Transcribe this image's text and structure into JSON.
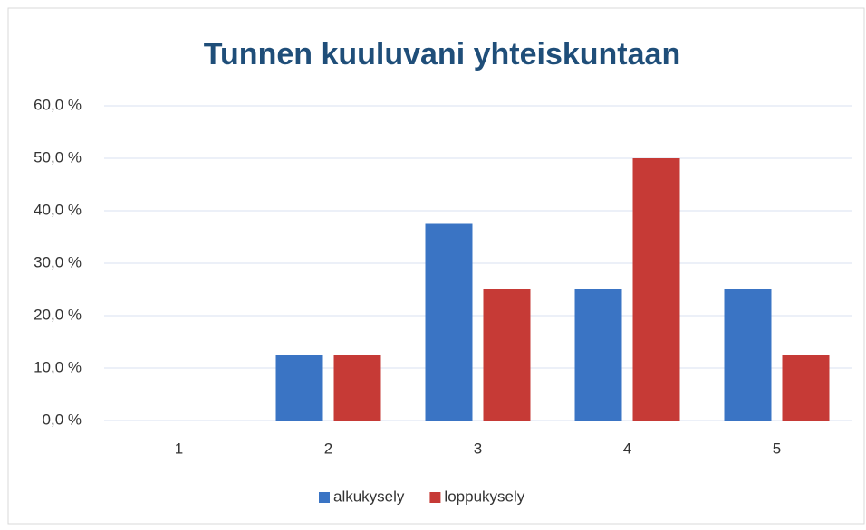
{
  "chart_data": {
    "type": "bar",
    "title": "Tunnen kuuluvani yhteiskuntaan",
    "categories": [
      "1",
      "2",
      "3",
      "4",
      "5"
    ],
    "series": [
      {
        "name": "alkukysely",
        "color": "#3a74c4",
        "values": [
          0,
          12.5,
          37.5,
          25,
          25
        ]
      },
      {
        "name": "loppukysely",
        "color": "#c63a36",
        "values": [
          0,
          12.5,
          25,
          50,
          12.5
        ]
      }
    ],
    "ylim": [
      0,
      60
    ],
    "yticks": [
      {
        "value": 0,
        "label": "0,0 %"
      },
      {
        "value": 10,
        "label": "10,0 %"
      },
      {
        "value": 20,
        "label": "20,0 %"
      },
      {
        "value": 30,
        "label": "30,0 %"
      },
      {
        "value": 40,
        "label": "40,0 %"
      },
      {
        "value": 50,
        "label": "50,0 %"
      },
      {
        "value": 60,
        "label": "60,0 %"
      }
    ],
    "grid": true,
    "legend": "bottom"
  }
}
